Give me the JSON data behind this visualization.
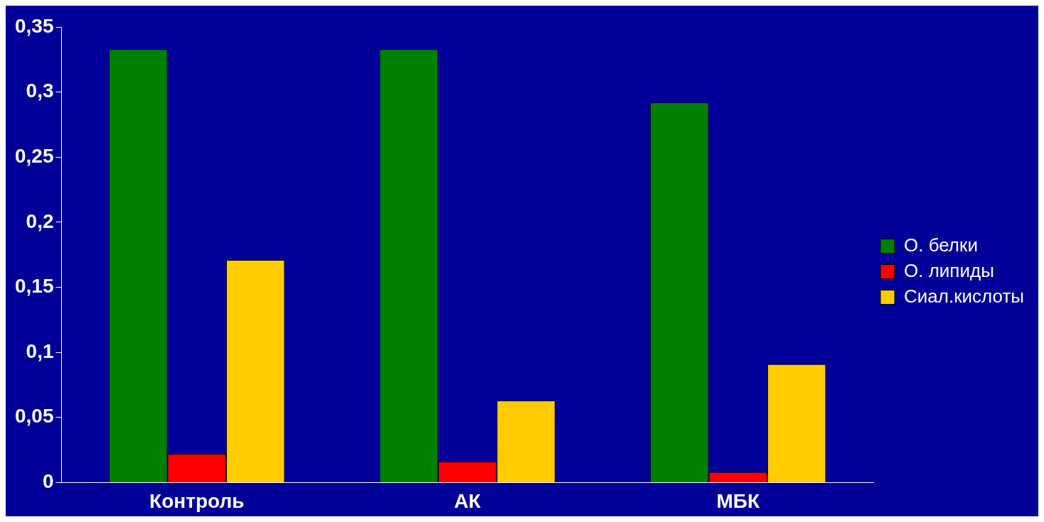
{
  "chart_data": {
    "type": "bar",
    "categories": [
      "Контроль",
      "АК",
      "МБК"
    ],
    "series": [
      {
        "name": "О. белки",
        "color": "#008000",
        "values": [
          0.333,
          0.333,
          0.292
        ]
      },
      {
        "name": "О. липиды",
        "color": "#ff0000",
        "values": [
          0.022,
          0.016,
          0.008
        ]
      },
      {
        "name": "Сиал.кислоты",
        "color": "#ffcc00",
        "values": [
          0.171,
          0.063,
          0.091
        ]
      }
    ],
    "ylim": [
      0,
      0.35
    ],
    "yticks": [
      {
        "value": 0,
        "label": "0"
      },
      {
        "value": 0.05,
        "label": "0,05"
      },
      {
        "value": 0.1,
        "label": "0,1"
      },
      {
        "value": 0.15,
        "label": "0,15"
      },
      {
        "value": 0.2,
        "label": "0,2"
      },
      {
        "value": 0.25,
        "label": "0,25"
      },
      {
        "value": 0.3,
        "label": "0,3"
      },
      {
        "value": 0.35,
        "label": "0,35"
      }
    ],
    "grid": false,
    "legend": "right"
  }
}
